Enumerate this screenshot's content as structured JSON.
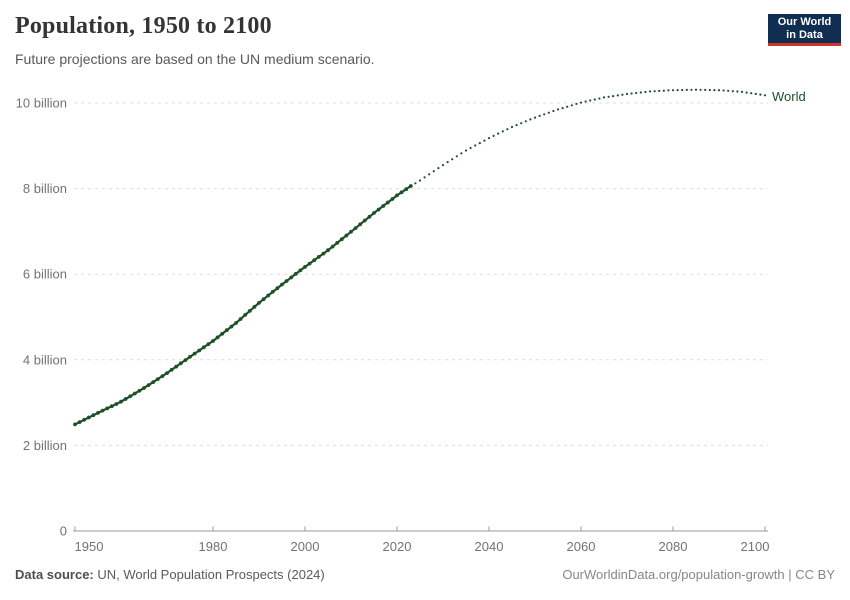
{
  "header": {
    "title": "Population, 1950 to 2100",
    "subtitle": "Future projections are based on the UN medium scenario.",
    "logo": {
      "line1": "Our World",
      "line2": "in Data"
    }
  },
  "chart_data": {
    "type": "line",
    "title": "Population, 1950 to 2100",
    "xlabel": "",
    "ylabel": "",
    "unit": "people (billions)",
    "xlim": [
      1950,
      2100
    ],
    "ylim": [
      0,
      10.45
    ],
    "grid": "horizontal-dashed",
    "legend_position": "line-end-label",
    "x_ticks": [
      1950,
      1980,
      2000,
      2020,
      2040,
      2060,
      2080,
      2100
    ],
    "y_ticks": [
      {
        "value": 0,
        "label": "0"
      },
      {
        "value": 2,
        "label": "2 billion"
      },
      {
        "value": 4,
        "label": "4 billion"
      },
      {
        "value": 6,
        "label": "6 billion"
      },
      {
        "value": 8,
        "label": "8 billion"
      },
      {
        "value": 10,
        "label": "10 billion"
      }
    ],
    "series": [
      {
        "name": "World",
        "color": "#1D5128",
        "style_historical": "solid-with-dots",
        "style_projection": "dotted",
        "projection_from_year": 2023,
        "points": [
          [
            1950,
            2.49
          ],
          [
            1955,
            2.76
          ],
          [
            1960,
            3.02
          ],
          [
            1965,
            3.34
          ],
          [
            1970,
            3.69
          ],
          [
            1975,
            4.07
          ],
          [
            1980,
            4.44
          ],
          [
            1985,
            4.86
          ],
          [
            1990,
            5.33
          ],
          [
            1995,
            5.76
          ],
          [
            2000,
            6.17
          ],
          [
            2005,
            6.56
          ],
          [
            2010,
            6.99
          ],
          [
            2015,
            7.43
          ],
          [
            2020,
            7.84
          ],
          [
            2023,
            8.06
          ],
          [
            2025,
            8.19
          ],
          [
            2030,
            8.55
          ],
          [
            2035,
            8.89
          ],
          [
            2040,
            9.18
          ],
          [
            2045,
            9.44
          ],
          [
            2050,
            9.66
          ],
          [
            2055,
            9.85
          ],
          [
            2060,
            10.01
          ],
          [
            2065,
            10.13
          ],
          [
            2070,
            10.21
          ],
          [
            2075,
            10.27
          ],
          [
            2080,
            10.3
          ],
          [
            2085,
            10.31
          ],
          [
            2090,
            10.3
          ],
          [
            2095,
            10.26
          ],
          [
            2100,
            10.18
          ]
        ]
      }
    ]
  },
  "footer": {
    "source_label": "Data source:",
    "source_value": " UN, World Population Prospects (2024)",
    "link": "OurWorldinData.org/population-growth",
    "separator": " | ",
    "license": "CC BY"
  },
  "colors": {
    "series_green": "#1D5128",
    "logo_background": "#0F2E52",
    "logo_stripe": "#D0352C",
    "grid": "#DCDCDC",
    "axis": "#999999",
    "tick_text": "#737373",
    "title_text": "#343434",
    "subtitle_text": "#595959"
  }
}
